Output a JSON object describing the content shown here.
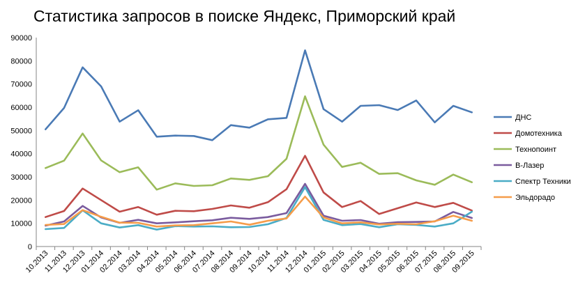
{
  "chart_data": {
    "type": "line",
    "title": "Статистика запросов в поиске Яндекс, Приморский край",
    "xlabel": "",
    "ylabel": "",
    "ylim": [
      0,
      90000
    ],
    "yticks": [
      "0",
      "10000",
      "20000",
      "30000",
      "40000",
      "50000",
      "60000",
      "70000",
      "80000",
      "90000"
    ],
    "grid": false,
    "legend_position": "right",
    "categories": [
      "10.2013",
      "11.2013",
      "12.2013",
      "01.2014",
      "02.2014",
      "03.2014",
      "04.2014",
      "05.2014",
      "06.2014",
      "07.2014",
      "08.2014",
      "09.2014",
      "10.2014",
      "11.2014",
      "12.2014",
      "01.2015",
      "02.2015",
      "03.2015",
      "04.2015",
      "05.2015",
      "06.2015",
      "07.2015",
      "08.2015",
      "09.2015"
    ],
    "series": [
      {
        "name": "ДНС",
        "color": "#4a7ab5",
        "values": [
          50500,
          59700,
          77200,
          69000,
          53800,
          58700,
          47300,
          47800,
          47600,
          45800,
          52300,
          51200,
          54800,
          55400,
          84500,
          59200,
          53800,
          60600,
          60900,
          58800,
          62900,
          53500,
          60600,
          57800
        ]
      },
      {
        "name": "Домотехника",
        "color": "#bf4b48",
        "values": [
          12700,
          15300,
          25000,
          20000,
          15000,
          17000,
          13700,
          15400,
          15200,
          16200,
          17700,
          16700,
          19100,
          24700,
          39100,
          23300,
          17000,
          19600,
          14000,
          16500,
          19000,
          17000,
          18800,
          15500
        ]
      },
      {
        "name": "Технопоинт",
        "color": "#9bbb59",
        "values": [
          33800,
          37000,
          48700,
          37100,
          32000,
          34100,
          24500,
          27200,
          26100,
          26400,
          29300,
          28700,
          30300,
          37800,
          64700,
          43900,
          34300,
          36100,
          31300,
          31600,
          28500,
          26600,
          31000,
          27700
        ]
      },
      {
        "name": "В-Лазер",
        "color": "#7a5b9e",
        "values": [
          9000,
          10800,
          17500,
          12500,
          10200,
          11500,
          10000,
          10400,
          10900,
          11300,
          12400,
          11900,
          12700,
          14400,
          27000,
          13300,
          11100,
          11400,
          9800,
          10500,
          10600,
          10800,
          14900,
          12300
        ]
      },
      {
        "name": "Спектр Техники",
        "color": "#4aacc6",
        "values": [
          7500,
          8000,
          15600,
          10000,
          8200,
          9200,
          7300,
          8800,
          8600,
          8700,
          8300,
          8400,
          9600,
          12300,
          25600,
          11500,
          9200,
          9700,
          8300,
          9600,
          9300,
          8600,
          10000,
          15000
        ]
      },
      {
        "name": "Эльдорадо",
        "color": "#f59c4a",
        "values": [
          9300,
          9700,
          15700,
          12800,
          10300,
          10200,
          8600,
          9100,
          9200,
          10000,
          10800,
          9400,
          11100,
          12100,
          21500,
          12500,
          10000,
          10400,
          9500,
          9800,
          9600,
          10900,
          13300,
          11100
        ]
      }
    ]
  }
}
